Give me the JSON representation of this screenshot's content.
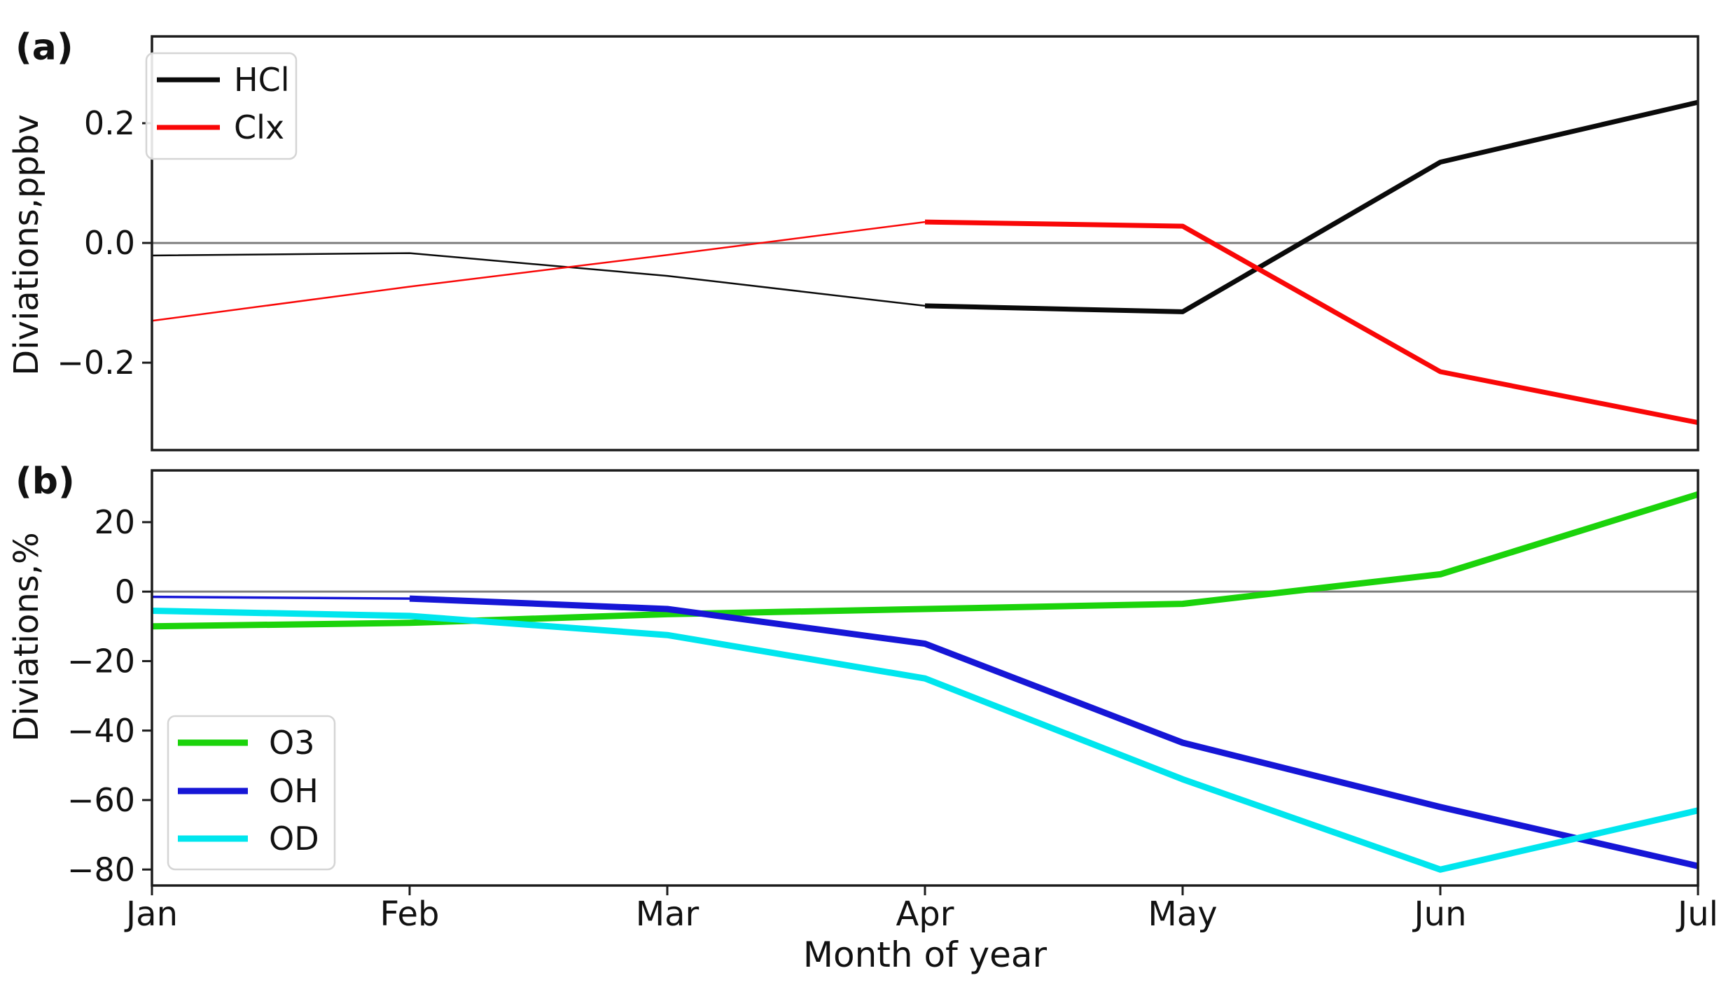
{
  "figure": {
    "background": "#ffffff",
    "xlabel": "Month of year",
    "panels": [
      {
        "tag": "(a)",
        "ylabel": "Diviations,ppbv"
      },
      {
        "tag": "(b)",
        "ylabel": "Diviations,%"
      }
    ]
  },
  "colors": {
    "spine": "#1c1c1c",
    "zero_line": "#7d7d7d",
    "legend_border": "#d5d5d5",
    "legend_background": "#ffffff",
    "hcl": "#0a0a0a",
    "clx": "#f90707",
    "o3": "#1bd30b",
    "oh": "#1616d6",
    "od": "#00e6ee"
  },
  "chart_data": [
    {
      "type": "line",
      "panel": "(a)",
      "title": "",
      "xlabel": "",
      "ylabel": "Diviations,ppbv",
      "categories": [
        "Jan",
        "Feb",
        "Mar",
        "Apr",
        "May",
        "Jun",
        "Jul"
      ],
      "ylim": [
        -0.346,
        0.345
      ],
      "grid": false,
      "zero_line": true,
      "legend_position": "upper-left",
      "yticks": [
        {
          "value": 0.2,
          "label": "0.2"
        },
        {
          "value": 0.0,
          "label": "0.0"
        },
        {
          "value": -0.2,
          "label": "−0.2"
        }
      ],
      "series": [
        {
          "name": "HCl",
          "color": "#0a0a0a",
          "values": [
            -0.021,
            -0.017,
            -0.055,
            -0.105,
            -0.115,
            0.135,
            0.235
          ],
          "thin_until": "Apr"
        },
        {
          "name": "Clx",
          "color": "#f90707",
          "values": [
            -0.13,
            -0.073,
            -0.02,
            0.035,
            0.028,
            -0.215,
            -0.3
          ],
          "thin_until": "Apr"
        }
      ]
    },
    {
      "type": "line",
      "panel": "(b)",
      "title": "",
      "xlabel": "Month of year",
      "ylabel": "Diviations,%",
      "categories": [
        "Jan",
        "Feb",
        "Mar",
        "Apr",
        "May",
        "Jun",
        "Jul"
      ],
      "ylim": [
        -84.6,
        34.9
      ],
      "grid": false,
      "zero_line": true,
      "legend_position": "lower-left",
      "yticks": [
        {
          "value": 20,
          "label": "20"
        },
        {
          "value": 0,
          "label": "0"
        },
        {
          "value": -20,
          "label": "−20"
        },
        {
          "value": -40,
          "label": "−40"
        },
        {
          "value": -60,
          "label": "−60"
        },
        {
          "value": -80,
          "label": "−80"
        }
      ],
      "series": [
        {
          "name": "O3",
          "color": "#1bd30b",
          "values": [
            -10,
            -9,
            -6.5,
            -5,
            -3.5,
            5,
            28
          ],
          "thin_until": "Jan"
        },
        {
          "name": "OH",
          "color": "#1616d6",
          "values": [
            -1.5,
            -2,
            -5,
            -15,
            -43.5,
            -62,
            -79
          ],
          "thin_until": "Feb"
        },
        {
          "name": "OD",
          "color": "#00e6ee",
          "values": [
            -5.5,
            -7,
            -12.5,
            -25,
            -54,
            -80,
            -63
          ],
          "thin_until": "Jan"
        }
      ]
    }
  ]
}
